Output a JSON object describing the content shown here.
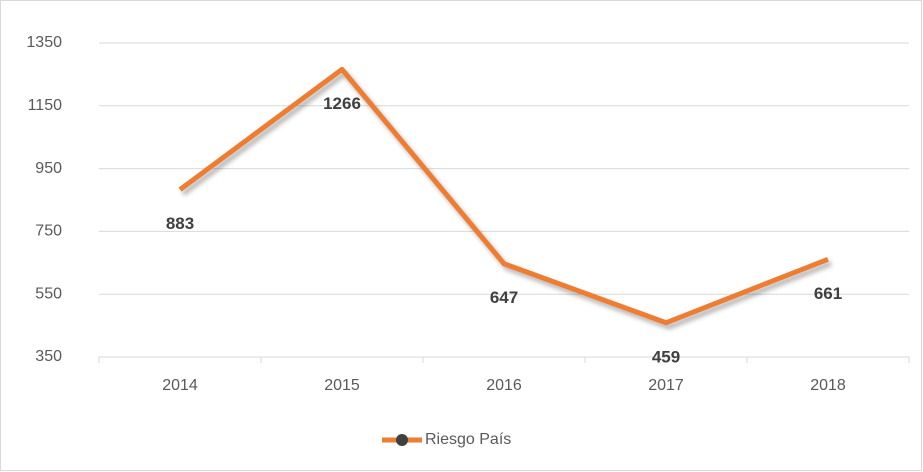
{
  "chart_data": {
    "type": "line",
    "categories": [
      "2014",
      "2015",
      "2016",
      "2017",
      "2018"
    ],
    "series": [
      {
        "name": "Riesgo País",
        "color": "#ed7d31",
        "values": [
          883,
          1266,
          647,
          459,
          661
        ]
      }
    ],
    "ylim": [
      350,
      1350
    ],
    "yticks": [
      350,
      550,
      750,
      950,
      1150,
      1350
    ],
    "grid": true,
    "legend": "bottom"
  }
}
